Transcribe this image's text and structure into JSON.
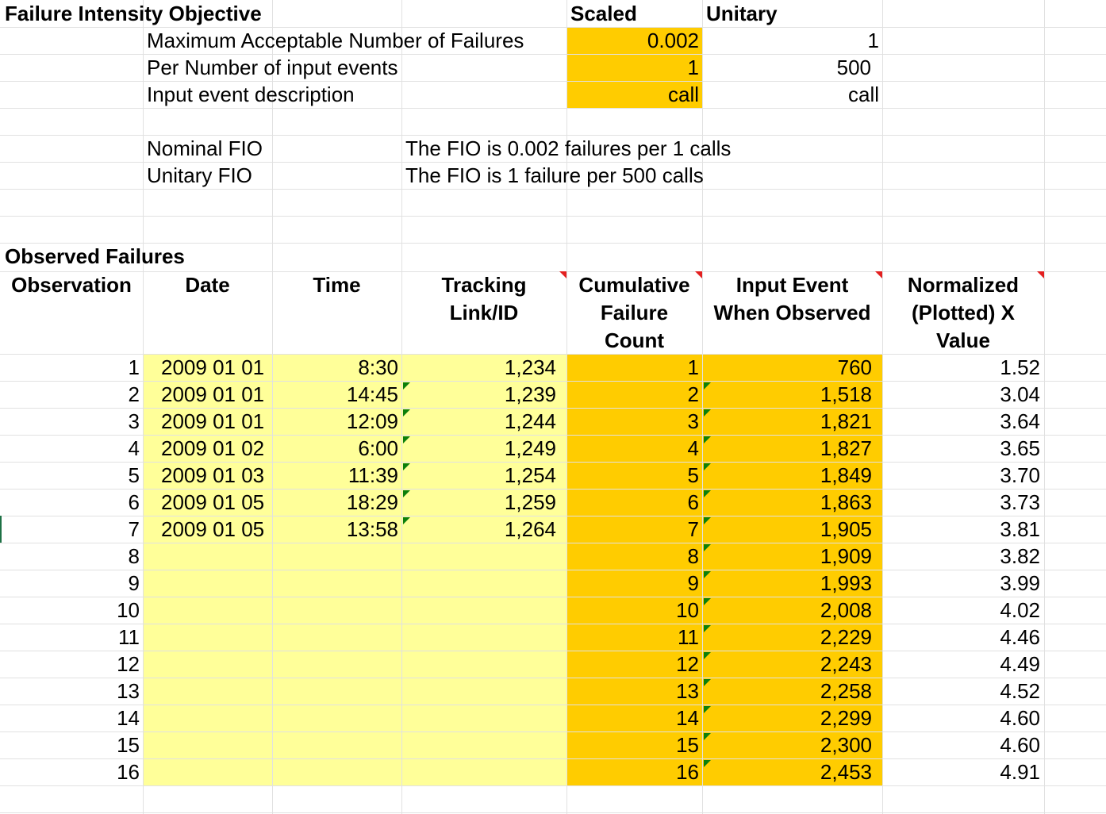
{
  "fio": {
    "title": "Failure Intensity Objective",
    "col_scaled": "Scaled",
    "col_unitary": "Unitary",
    "rows": [
      {
        "label": "Maximum Acceptable Number of Failures",
        "scaled": "0.002",
        "unitary": "1"
      },
      {
        "label": "Per Number of input events",
        "scaled": "1",
        "unitary": "500"
      },
      {
        "label": "Input event description",
        "scaled": "call",
        "unitary": "call"
      }
    ],
    "nominal_label": "Nominal FIO",
    "nominal_text": "The FIO is 0.002 failures per 1 calls",
    "unitary_label": "Unitary FIO",
    "unitary_text": "The FIO is 1 failure per 500 calls"
  },
  "observed": {
    "title": "Observed Failures",
    "headers": {
      "observation": "Observation",
      "date": "Date",
      "time": "Time",
      "tracking": [
        "Tracking",
        "Link/ID"
      ],
      "cumulative": [
        "Cumulative",
        "Failure",
        "Count"
      ],
      "input_event": [
        "Input Event",
        "When Observed"
      ],
      "normalized": [
        "Normalized",
        "(Plotted) X",
        "Value"
      ]
    },
    "rows": [
      {
        "obs": "1",
        "date": "2009 01 01",
        "time": "8:30",
        "track": "1,234",
        "cum": "1",
        "event": "760",
        "norm": "1.52"
      },
      {
        "obs": "2",
        "date": "2009 01 01",
        "time": "14:45",
        "track": "1,239",
        "cum": "2",
        "event": "1,518",
        "norm": "3.04"
      },
      {
        "obs": "3",
        "date": "2009 01 01",
        "time": "12:09",
        "track": "1,244",
        "cum": "3",
        "event": "1,821",
        "norm": "3.64"
      },
      {
        "obs": "4",
        "date": "2009 01 02",
        "time": "6:00",
        "track": "1,249",
        "cum": "4",
        "event": "1,827",
        "norm": "3.65"
      },
      {
        "obs": "5",
        "date": "2009 01 03",
        "time": "11:39",
        "track": "1,254",
        "cum": "5",
        "event": "1,849",
        "norm": "3.70"
      },
      {
        "obs": "6",
        "date": "2009 01 05",
        "time": "18:29",
        "track": "1,259",
        "cum": "6",
        "event": "1,863",
        "norm": "3.73"
      },
      {
        "obs": "7",
        "date": "2009 01 05",
        "time": "13:58",
        "track": "1,264",
        "cum": "7",
        "event": "1,905",
        "norm": "3.81"
      },
      {
        "obs": "8",
        "date": "",
        "time": "",
        "track": "",
        "cum": "8",
        "event": "1,909",
        "norm": "3.82"
      },
      {
        "obs": "9",
        "date": "",
        "time": "",
        "track": "",
        "cum": "9",
        "event": "1,993",
        "norm": "3.99"
      },
      {
        "obs": "10",
        "date": "",
        "time": "",
        "track": "",
        "cum": "10",
        "event": "2,008",
        "norm": "4.02"
      },
      {
        "obs": "11",
        "date": "",
        "time": "",
        "track": "",
        "cum": "11",
        "event": "2,229",
        "norm": "4.46"
      },
      {
        "obs": "12",
        "date": "",
        "time": "",
        "track": "",
        "cum": "12",
        "event": "2,243",
        "norm": "4.49"
      },
      {
        "obs": "13",
        "date": "",
        "time": "",
        "track": "",
        "cum": "13",
        "event": "2,258",
        "norm": "4.52"
      },
      {
        "obs": "14",
        "date": "",
        "time": "",
        "track": "",
        "cum": "14",
        "event": "2,299",
        "norm": "4.60"
      },
      {
        "obs": "15",
        "date": "",
        "time": "",
        "track": "",
        "cum": "15",
        "event": "2,300",
        "norm": "4.60"
      },
      {
        "obs": "16",
        "date": "",
        "time": "",
        "track": "",
        "cum": "16",
        "event": "2,453",
        "norm": "4.91"
      }
    ]
  },
  "colors": {
    "input_fill": "#FFFF99",
    "computed_fill": "#FFCC00",
    "gridline": "#E1E1E1",
    "comment_marker": "#E32020",
    "error_marker": "#0B7F0B"
  }
}
